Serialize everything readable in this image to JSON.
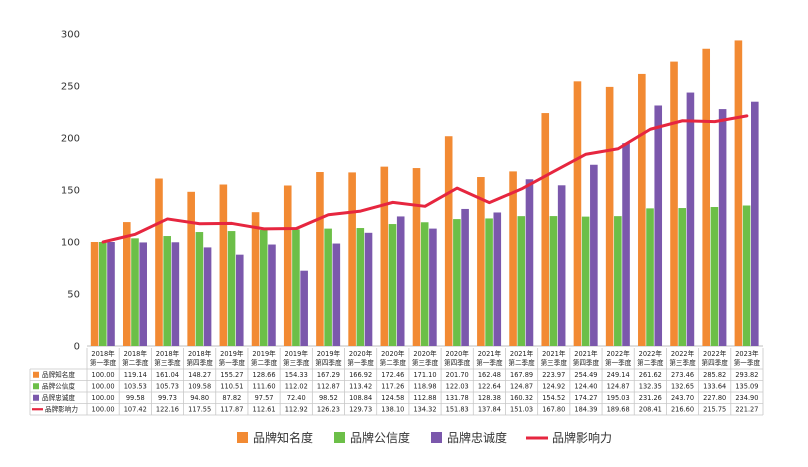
{
  "chart_data": {
    "type": "bar",
    "ylim": [
      0,
      300
    ],
    "yticks": [
      0,
      50,
      100,
      150,
      200,
      250,
      300
    ],
    "grid": false,
    "legend_position": "bottom",
    "categories": [
      [
        "2018年",
        "第一季度"
      ],
      [
        "2018年",
        "第二季度"
      ],
      [
        "2018年",
        "第三季度"
      ],
      [
        "2018年",
        "第四季度"
      ],
      [
        "2019年",
        "第一季度"
      ],
      [
        "2019年",
        "第二季度"
      ],
      [
        "2019年",
        "第三季度"
      ],
      [
        "2019年",
        "第四季度"
      ],
      [
        "2020年",
        "第一季度"
      ],
      [
        "2020年",
        "第二季度"
      ],
      [
        "2020年",
        "第三季度"
      ],
      [
        "2020年",
        "第四季度"
      ],
      [
        "2021年",
        "第一季度"
      ],
      [
        "2021年",
        "第二季度"
      ],
      [
        "2021年",
        "第三季度"
      ],
      [
        "2021年",
        "第四季度"
      ],
      [
        "2022年",
        "第一季度"
      ],
      [
        "2022年",
        "第二季度"
      ],
      [
        "2022年",
        "第三季度"
      ],
      [
        "2022年",
        "第四季度"
      ],
      [
        "2023年",
        "第一季度"
      ]
    ],
    "series": [
      {
        "name": "品牌知名度",
        "type": "bar",
        "color": "#F28A33",
        "values": [
          "100.00",
          "119.14",
          "161.04",
          "148.27",
          "155.27",
          "128.66",
          "154.33",
          "167.29",
          "166.92",
          "172.46",
          "171.10",
          "201.70",
          "162.48",
          "167.89",
          "223.97",
          "254.49",
          "249.14",
          "261.62",
          "273.46",
          "285.82",
          "293.82"
        ]
      },
      {
        "name": "品牌公信度",
        "type": "bar",
        "color": "#6CBF48",
        "values": [
          "100.00",
          "103.53",
          "105.73",
          "109.58",
          "110.51",
          "111.60",
          "112.02",
          "112.87",
          "113.42",
          "117.26",
          "118.98",
          "122.03",
          "122.64",
          "124.87",
          "124.92",
          "124.40",
          "124.87",
          "132.35",
          "132.65",
          "133.64",
          "135.09"
        ]
      },
      {
        "name": "品牌忠诚度",
        "type": "bar",
        "color": "#7B58AC",
        "values": [
          "100.00",
          "99.58",
          "99.73",
          "94.80",
          "87.82",
          "97.57",
          "72.40",
          "98.52",
          "108.84",
          "124.58",
          "112.88",
          "131.78",
          "128.38",
          "160.32",
          "154.52",
          "174.27",
          "195.03",
          "231.26",
          "243.70",
          "227.80",
          "234.90"
        ]
      },
      {
        "name": "品牌影响力",
        "type": "line",
        "color": "#E6263F",
        "values": [
          "100.00",
          "107.42",
          "122.16",
          "117.55",
          "117.87",
          "112.61",
          "112.92",
          "126.23",
          "129.73",
          "138.10",
          "134.32",
          "151.83",
          "137.84",
          "151.03",
          "167.80",
          "184.39",
          "189.68",
          "208.41",
          "216.60",
          "215.75",
          "221.27"
        ]
      }
    ]
  }
}
